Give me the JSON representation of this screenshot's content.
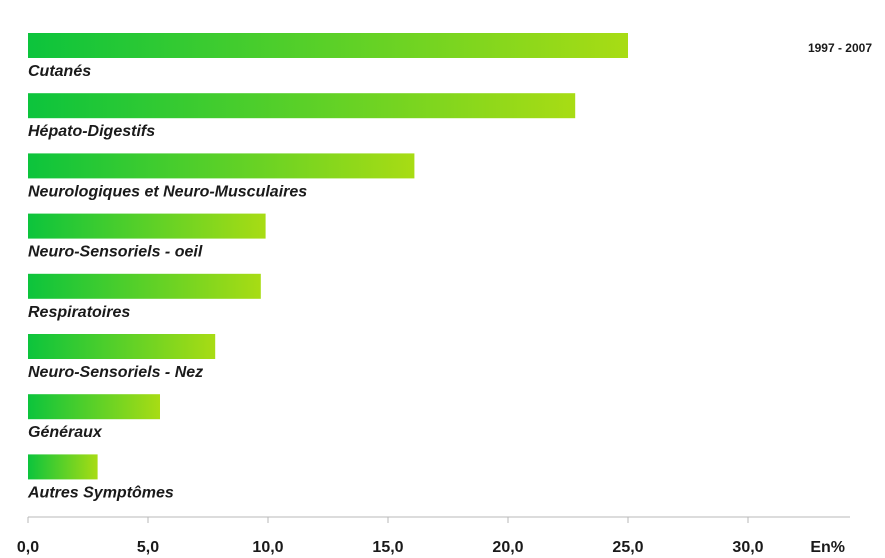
{
  "chart_data": {
    "type": "bar",
    "orientation": "horizontal",
    "categories": [
      "Cutanés",
      "Hépato-Digestifs",
      "Neurologiques et Neuro-Musculaires",
      "Neuro-Sensoriels - oeil",
      "Respiratoires",
      "Neuro-Sensoriels - Nez",
      "Généraux",
      "Autres Symptômes"
    ],
    "values": [
      25.0,
      22.8,
      16.1,
      9.9,
      9.7,
      7.8,
      5.5,
      2.9
    ],
    "period": "1997 - 2007",
    "xlabel": "En%",
    "xlim": [
      0,
      34
    ],
    "xticks": [
      0,
      5,
      10,
      15,
      20,
      25,
      30
    ],
    "xtick_labels": [
      "0,0",
      "5,0",
      "10,0",
      "15,0",
      "20,0",
      "25,0",
      "30,0"
    ],
    "grid": false,
    "colors": {
      "bar_start": "#0cc43c",
      "bar_end": "#a8dc14",
      "axis": "#b8b8b8",
      "text": "#1a1a1a"
    }
  }
}
